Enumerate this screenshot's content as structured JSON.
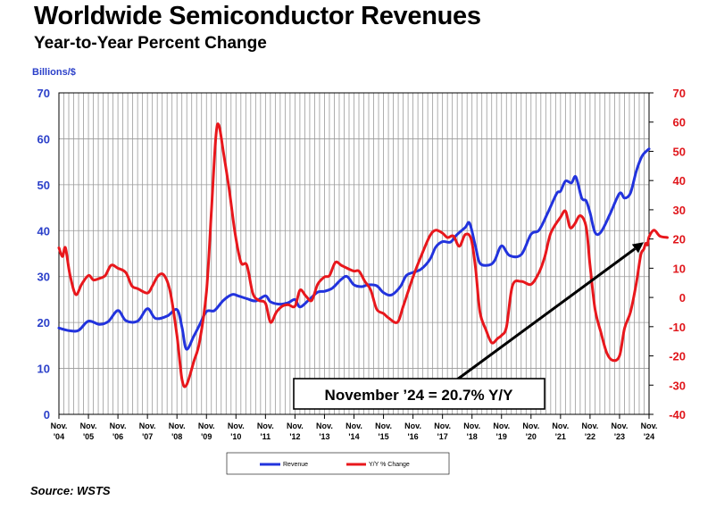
{
  "title": "Worldwide Semiconductor Revenues",
  "subtitle": "Year-to-Year Percent Change",
  "source": "Source: WSTS",
  "chart_data": {
    "type": "line",
    "title": "Worldwide Semiconductor Revenues",
    "subtitle": "Year-to-Year Percent Change",
    "ylabel_left": "Billions/$",
    "ylim_left": [
      0,
      70
    ],
    "yticks_left": [
      "0",
      "10",
      "20",
      "30",
      "40",
      "50",
      "60",
      "70"
    ],
    "ylim_right": [
      -40,
      70
    ],
    "yticks_right": [
      "-40",
      "-30",
      "-20",
      "-10",
      "0",
      "10",
      "20",
      "30",
      "40",
      "50",
      "60",
      "70"
    ],
    "x_range": [
      2004.83,
      2024.83
    ],
    "xticks": [
      {
        "x": 2004.83,
        "line1": "Nov.",
        "line2": "'04"
      },
      {
        "x": 2005.83,
        "line1": "Nov.",
        "line2": "'05"
      },
      {
        "x": 2006.83,
        "line1": "Nov.",
        "line2": "'06"
      },
      {
        "x": 2007.83,
        "line1": "Nov.",
        "line2": "'07"
      },
      {
        "x": 2008.83,
        "line1": "Nov.",
        "line2": "'08"
      },
      {
        "x": 2009.83,
        "line1": "Nov.",
        "line2": "'09"
      },
      {
        "x": 2010.83,
        "line1": "Nov.",
        "line2": "'10"
      },
      {
        "x": 2011.83,
        "line1": "Nov.",
        "line2": "'11"
      },
      {
        "x": 2012.83,
        "line1": "Nov.",
        "line2": "'12"
      },
      {
        "x": 2013.83,
        "line1": "Nov.",
        "line2": "'13"
      },
      {
        "x": 2014.83,
        "line1": "Nov.",
        "line2": "'14"
      },
      {
        "x": 2015.83,
        "line1": "Nov.",
        "line2": "'15"
      },
      {
        "x": 2016.83,
        "line1": "Nov.",
        "line2": "'16"
      },
      {
        "x": 2017.83,
        "line1": "Nov.",
        "line2": "'17"
      },
      {
        "x": 2018.83,
        "line1": "Nov.",
        "line2": "'18"
      },
      {
        "x": 2019.83,
        "line1": "Nov.",
        "line2": "'19"
      },
      {
        "x": 2020.83,
        "line1": "Nov.",
        "line2": "'20"
      },
      {
        "x": 2021.83,
        "line1": "Nov.",
        "line2": "'21"
      },
      {
        "x": 2022.83,
        "line1": "Nov.",
        "line2": "'22"
      },
      {
        "x": 2023.83,
        "line1": "Nov.",
        "line2": "'23"
      },
      {
        "x": 2024.83,
        "line1": "Nov.",
        "line2": "'24"
      }
    ],
    "grid": true,
    "legend_position": "bottom-center",
    "series": [
      {
        "name": "Revenue",
        "axis": "left",
        "color": "#2233dd",
        "points": [
          [
            2004.83,
            18.8
          ],
          [
            2005.2,
            18.2
          ],
          [
            2005.5,
            18.3
          ],
          [
            2005.83,
            20.3
          ],
          [
            2006.2,
            19.6
          ],
          [
            2006.5,
            20.2
          ],
          [
            2006.83,
            22.6
          ],
          [
            2007.1,
            20.4
          ],
          [
            2007.5,
            20.3
          ],
          [
            2007.83,
            23.0
          ],
          [
            2008.1,
            20.9
          ],
          [
            2008.5,
            21.4
          ],
          [
            2008.83,
            22.8
          ],
          [
            2009.0,
            19.0
          ],
          [
            2009.15,
            14.2
          ],
          [
            2009.4,
            17.0
          ],
          [
            2009.6,
            19.5
          ],
          [
            2009.83,
            22.4
          ],
          [
            2010.1,
            22.6
          ],
          [
            2010.4,
            24.8
          ],
          [
            2010.7,
            26.1
          ],
          [
            2010.9,
            25.8
          ],
          [
            2011.2,
            25.2
          ],
          [
            2011.5,
            24.7
          ],
          [
            2011.83,
            25.8
          ],
          [
            2012.0,
            24.5
          ],
          [
            2012.3,
            24.0
          ],
          [
            2012.6,
            24.3
          ],
          [
            2012.83,
            25.0
          ],
          [
            2013.0,
            23.4
          ],
          [
            2013.3,
            24.9
          ],
          [
            2013.6,
            26.6
          ],
          [
            2013.83,
            26.8
          ],
          [
            2014.1,
            27.5
          ],
          [
            2014.4,
            29.4
          ],
          [
            2014.6,
            30.0
          ],
          [
            2014.83,
            28.2
          ],
          [
            2015.1,
            27.8
          ],
          [
            2015.3,
            28.2
          ],
          [
            2015.6,
            28.0
          ],
          [
            2015.83,
            26.5
          ],
          [
            2016.1,
            26.0
          ],
          [
            2016.4,
            27.8
          ],
          [
            2016.6,
            30.2
          ],
          [
            2016.83,
            30.9
          ],
          [
            2017.1,
            31.6
          ],
          [
            2017.4,
            33.7
          ],
          [
            2017.6,
            36.4
          ],
          [
            2017.83,
            37.6
          ],
          [
            2018.1,
            37.5
          ],
          [
            2018.3,
            39.0
          ],
          [
            2018.6,
            40.7
          ],
          [
            2018.75,
            41.6
          ],
          [
            2018.95,
            36.5
          ],
          [
            2019.1,
            32.9
          ],
          [
            2019.4,
            32.5
          ],
          [
            2019.6,
            33.5
          ],
          [
            2019.83,
            36.7
          ],
          [
            2020.1,
            34.6
          ],
          [
            2020.5,
            34.8
          ],
          [
            2020.83,
            39.2
          ],
          [
            2021.1,
            40.1
          ],
          [
            2021.4,
            43.9
          ],
          [
            2021.7,
            48.1
          ],
          [
            2021.83,
            48.6
          ],
          [
            2022.0,
            50.8
          ],
          [
            2022.2,
            50.4
          ],
          [
            2022.35,
            51.7
          ],
          [
            2022.55,
            47.1
          ],
          [
            2022.7,
            46.5
          ],
          [
            2022.83,
            43.9
          ],
          [
            2023.0,
            39.6
          ],
          [
            2023.2,
            39.7
          ],
          [
            2023.5,
            43.5
          ],
          [
            2023.83,
            48.1
          ],
          [
            2024.0,
            47.1
          ],
          [
            2024.2,
            48.2
          ],
          [
            2024.4,
            53.0
          ],
          [
            2024.6,
            56.3
          ],
          [
            2024.83,
            57.8
          ]
        ]
      },
      {
        "name": "Y/Y % Change",
        "axis": "right",
        "color": "#e8171c",
        "points": [
          [
            2004.83,
            17.0
          ],
          [
            2004.95,
            14.0
          ],
          [
            2005.05,
            17.0
          ],
          [
            2005.2,
            8.0
          ],
          [
            2005.4,
            1.0
          ],
          [
            2005.6,
            4.5
          ],
          [
            2005.83,
            7.5
          ],
          [
            2006.0,
            6.0
          ],
          [
            2006.2,
            6.5
          ],
          [
            2006.4,
            7.5
          ],
          [
            2006.6,
            11.0
          ],
          [
            2006.83,
            10.0
          ],
          [
            2007.1,
            8.5
          ],
          [
            2007.3,
            4.0
          ],
          [
            2007.5,
            3.0
          ],
          [
            2007.83,
            1.5
          ],
          [
            2008.0,
            4.0
          ],
          [
            2008.2,
            7.5
          ],
          [
            2008.4,
            7.5
          ],
          [
            2008.6,
            2.0
          ],
          [
            2008.83,
            -13.0
          ],
          [
            2009.0,
            -28.0
          ],
          [
            2009.15,
            -30.0
          ],
          [
            2009.4,
            -22.0
          ],
          [
            2009.6,
            -15.0
          ],
          [
            2009.83,
            2.0
          ],
          [
            2010.0,
            30.0
          ],
          [
            2010.15,
            55.0
          ],
          [
            2010.25,
            59.0
          ],
          [
            2010.4,
            50.0
          ],
          [
            2010.6,
            37.0
          ],
          [
            2010.8,
            22.0
          ],
          [
            2011.0,
            12.0
          ],
          [
            2011.2,
            11.0
          ],
          [
            2011.4,
            1.5
          ],
          [
            2011.6,
            -1.0
          ],
          [
            2011.83,
            -2.0
          ],
          [
            2012.0,
            -8.5
          ],
          [
            2012.2,
            -5.0
          ],
          [
            2012.4,
            -3.0
          ],
          [
            2012.6,
            -2.5
          ],
          [
            2012.83,
            -3.0
          ],
          [
            2013.0,
            2.5
          ],
          [
            2013.2,
            0.5
          ],
          [
            2013.4,
            -1.0
          ],
          [
            2013.6,
            4.5
          ],
          [
            2013.83,
            7.0
          ],
          [
            2014.0,
            7.5
          ],
          [
            2014.2,
            12.0
          ],
          [
            2014.4,
            11.0
          ],
          [
            2014.6,
            10.0
          ],
          [
            2014.83,
            9.0
          ],
          [
            2015.0,
            9.0
          ],
          [
            2015.2,
            5.5
          ],
          [
            2015.4,
            2.5
          ],
          [
            2015.6,
            -4.0
          ],
          [
            2015.83,
            -5.5
          ],
          [
            2016.0,
            -7.0
          ],
          [
            2016.3,
            -8.5
          ],
          [
            2016.5,
            -3.0
          ],
          [
            2016.83,
            7.0
          ],
          [
            2017.1,
            14.0
          ],
          [
            2017.4,
            21.0
          ],
          [
            2017.6,
            23.0
          ],
          [
            2017.83,
            22.0
          ],
          [
            2018.0,
            20.5
          ],
          [
            2018.2,
            21.0
          ],
          [
            2018.4,
            17.5
          ],
          [
            2018.6,
            21.5
          ],
          [
            2018.8,
            20.0
          ],
          [
            2018.95,
            10.0
          ],
          [
            2019.1,
            -5.0
          ],
          [
            2019.3,
            -11.0
          ],
          [
            2019.5,
            -15.5
          ],
          [
            2019.7,
            -14.0
          ],
          [
            2019.83,
            -13.0
          ],
          [
            2020.0,
            -10.0
          ],
          [
            2020.2,
            4.0
          ],
          [
            2020.5,
            5.5
          ],
          [
            2020.83,
            4.5
          ],
          [
            2021.1,
            8.5
          ],
          [
            2021.3,
            14.0
          ],
          [
            2021.5,
            22.0
          ],
          [
            2021.83,
            27.5
          ],
          [
            2022.0,
            29.5
          ],
          [
            2022.15,
            24.0
          ],
          [
            2022.3,
            25.0
          ],
          [
            2022.5,
            28.0
          ],
          [
            2022.7,
            24.0
          ],
          [
            2022.83,
            11.0
          ],
          [
            2023.0,
            -4.0
          ],
          [
            2023.2,
            -12.0
          ],
          [
            2023.4,
            -19.0
          ],
          [
            2023.6,
            -21.5
          ],
          [
            2023.83,
            -20.0
          ],
          [
            2024.0,
            -10.5
          ],
          [
            2024.2,
            -5.0
          ],
          [
            2024.4,
            5.0
          ],
          [
            2024.55,
            14.5
          ],
          [
            2024.65,
            16.5
          ],
          [
            2024.72,
            18.5
          ],
          [
            2024.78,
            18.0
          ],
          [
            2024.83,
            20.7
          ],
          [
            2025.0,
            23.0
          ],
          [
            2025.2,
            21.0
          ],
          [
            2025.45,
            20.5
          ]
        ]
      }
    ],
    "annotation": {
      "text": "November ’24 = 20.7% Y/Y",
      "x": 2024.83,
      "y_right": 20.7
    }
  }
}
